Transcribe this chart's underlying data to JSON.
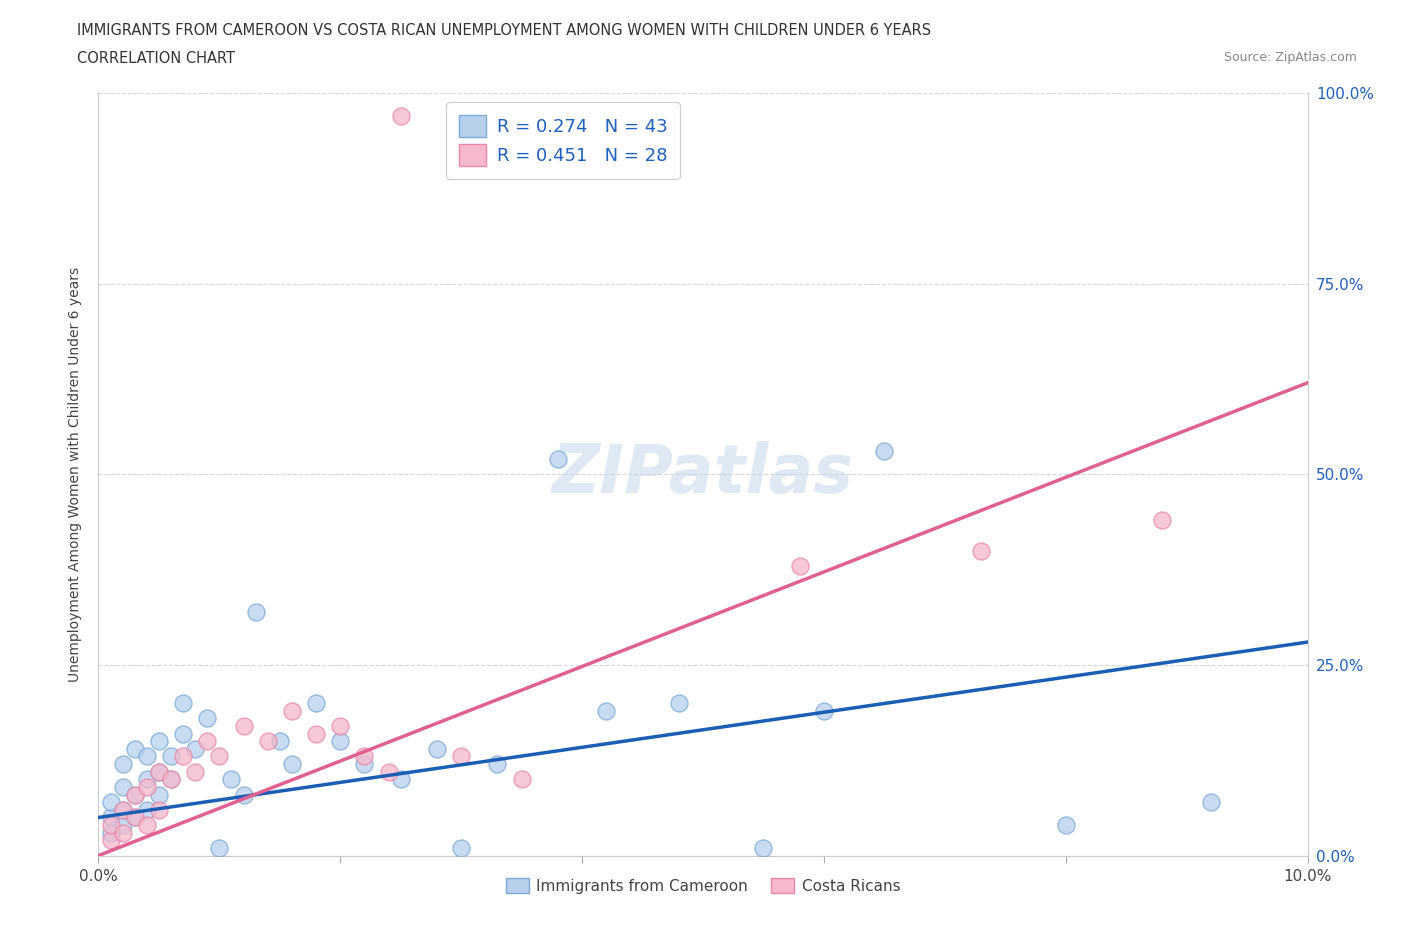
{
  "title_line1": "IMMIGRANTS FROM CAMEROON VS COSTA RICAN UNEMPLOYMENT AMONG WOMEN WITH CHILDREN UNDER 6 YEARS",
  "title_line2": "CORRELATION CHART",
  "source": "Source: ZipAtlas.com",
  "ylabel": "Unemployment Among Women with Children Under 6 years",
  "xlim": [
    0.0,
    0.1
  ],
  "ylim": [
    0.0,
    1.0
  ],
  "xticks": [
    0.0,
    0.02,
    0.04,
    0.06,
    0.08,
    0.1
  ],
  "yticks": [
    0.0,
    0.25,
    0.5,
    0.75,
    1.0
  ],
  "xtick_labels": [
    "0.0%",
    "",
    "",
    "",
    "",
    "10.0%"
  ],
  "right_ytick_labels": [
    "0.0%",
    "25.0%",
    "50.0%",
    "75.0%",
    "100.0%"
  ],
  "watermark": "ZIPatlas",
  "series1_color_fill": "#b8d0ec",
  "series1_color_edge": "#7aaad4",
  "series2_color_fill": "#f5b8cc",
  "series2_color_edge": "#e888a8",
  "trendline1_color": "#1a5fb4",
  "trendline2_color": "#e06090",
  "series1_label": "Immigrants from Cameroon",
  "series2_label": "Costa Ricans",
  "legend_text_color": "#2060c0",
  "right_axis_color": "#2060c0",
  "blue_x": [
    0.001,
    0.001,
    0.001,
    0.002,
    0.002,
    0.002,
    0.002,
    0.003,
    0.003,
    0.003,
    0.004,
    0.004,
    0.004,
    0.005,
    0.005,
    0.005,
    0.006,
    0.006,
    0.007,
    0.007,
    0.008,
    0.009,
    0.01,
    0.011,
    0.012,
    0.013,
    0.015,
    0.016,
    0.018,
    0.02,
    0.022,
    0.025,
    0.028,
    0.03,
    0.033,
    0.038,
    0.042,
    0.048,
    0.055,
    0.06,
    0.065,
    0.08,
    0.092
  ],
  "blue_y": [
    0.03,
    0.05,
    0.07,
    0.04,
    0.06,
    0.09,
    0.12,
    0.05,
    0.08,
    0.14,
    0.06,
    0.1,
    0.13,
    0.08,
    0.11,
    0.15,
    0.1,
    0.13,
    0.16,
    0.2,
    0.14,
    0.18,
    0.01,
    0.1,
    0.08,
    0.32,
    0.15,
    0.12,
    0.2,
    0.15,
    0.12,
    0.1,
    0.14,
    0.01,
    0.12,
    0.52,
    0.19,
    0.2,
    0.01,
    0.19,
    0.53,
    0.04,
    0.07
  ],
  "pink_x": [
    0.001,
    0.001,
    0.002,
    0.002,
    0.003,
    0.003,
    0.004,
    0.004,
    0.005,
    0.005,
    0.006,
    0.007,
    0.008,
    0.009,
    0.01,
    0.012,
    0.014,
    0.016,
    0.018,
    0.02,
    0.022,
    0.024,
    0.025,
    0.03,
    0.035,
    0.058,
    0.073,
    0.088
  ],
  "pink_y": [
    0.02,
    0.04,
    0.03,
    0.06,
    0.05,
    0.08,
    0.04,
    0.09,
    0.06,
    0.11,
    0.1,
    0.13,
    0.11,
    0.15,
    0.13,
    0.17,
    0.15,
    0.19,
    0.16,
    0.17,
    0.13,
    0.11,
    0.97,
    0.13,
    0.1,
    0.38,
    0.4,
    0.44
  ],
  "trendline1_x0": 0.0,
  "trendline1_y0": 0.05,
  "trendline1_x1": 0.1,
  "trendline1_y1": 0.28,
  "trendline2_x0": 0.0,
  "trendline2_y0": 0.0,
  "trendline2_x1": 0.1,
  "trendline2_y1": 0.62
}
